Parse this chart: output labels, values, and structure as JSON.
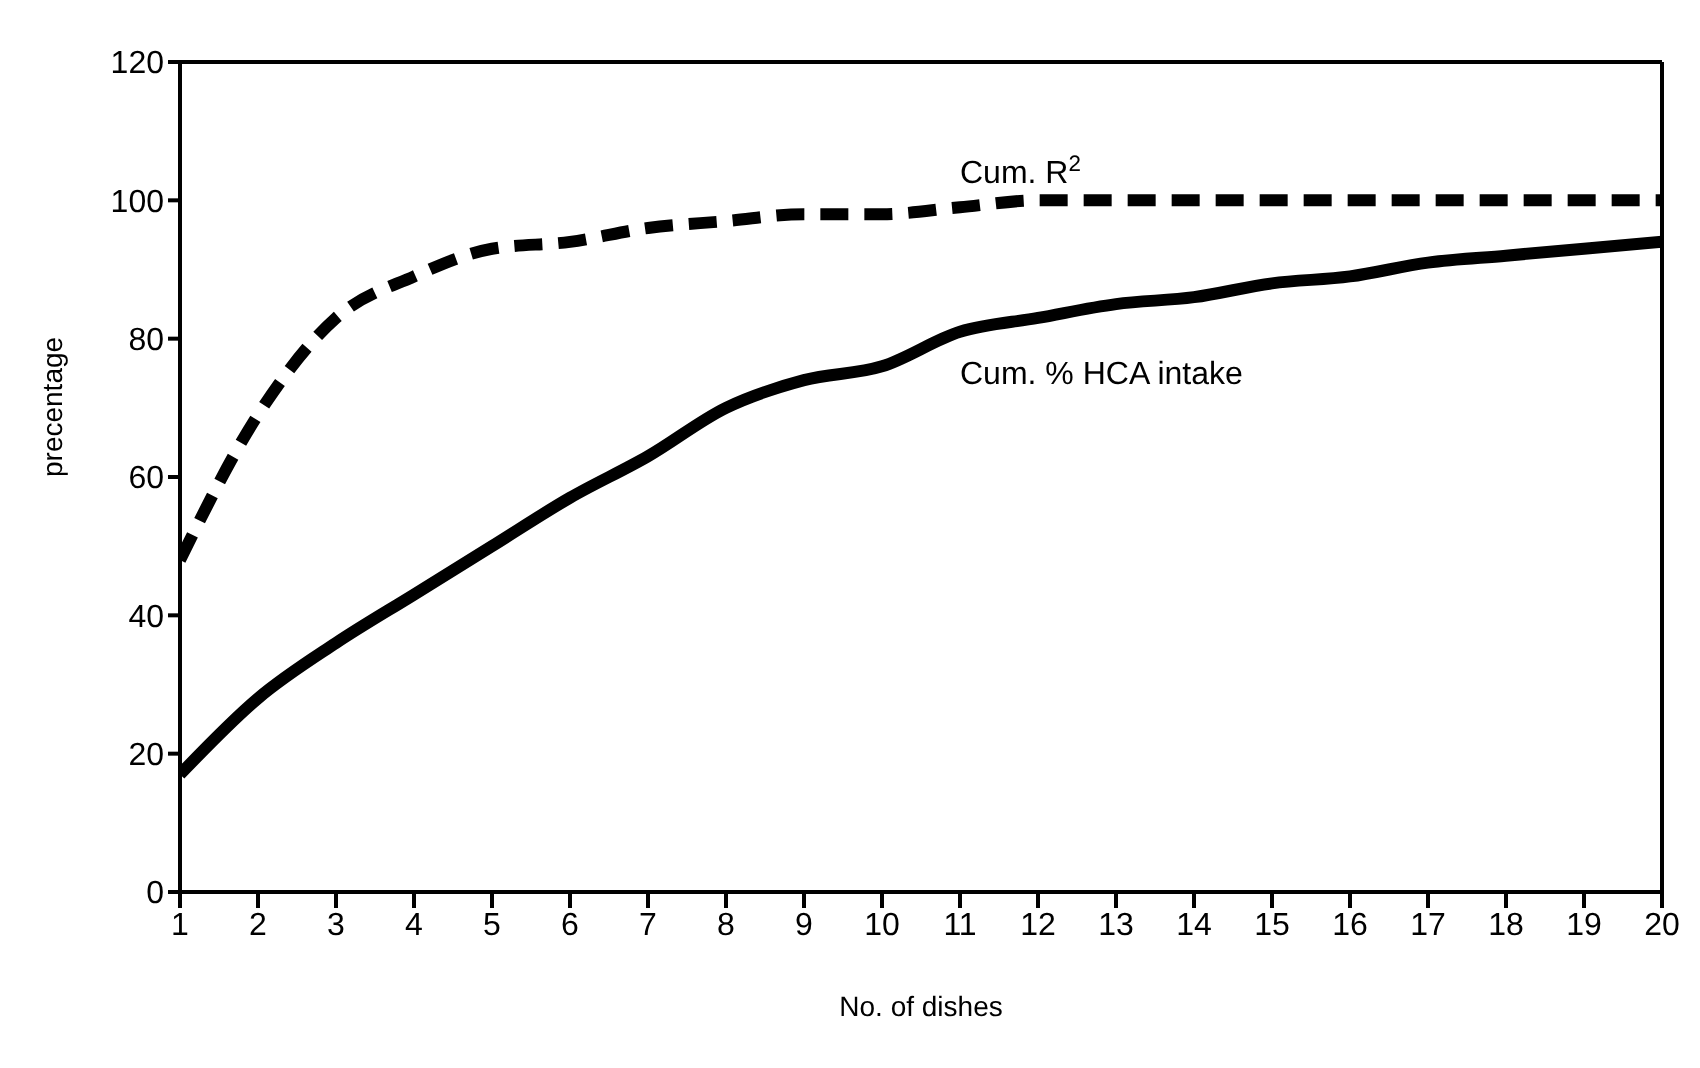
{
  "chart_data": {
    "type": "line",
    "xlabel": "No. of dishes",
    "ylabel": "precentage",
    "x": [
      1,
      2,
      3,
      4,
      5,
      6,
      7,
      8,
      9,
      10,
      11,
      12,
      13,
      14,
      15,
      16,
      17,
      18,
      19,
      20
    ],
    "series": [
      {
        "name": "Cum. R$^{2}$",
        "color": "#000000",
        "line_style": "dashed",
        "values": [
          48,
          69,
          83,
          89,
          93,
          94,
          96,
          97,
          98,
          98,
          99,
          100,
          100,
          100,
          100,
          100,
          100,
          100,
          100,
          100
        ]
      },
      {
        "name": "Cum. % HCA intake",
        "color": "#000000",
        "line_style": "solid",
        "values": [
          17,
          28,
          36,
          43,
          50,
          57,
          63,
          70,
          74,
          76,
          81,
          83,
          85,
          86,
          88,
          89,
          91,
          92,
          93,
          94
        ]
      }
    ],
    "xlim": [
      1,
      20
    ],
    "xticks": [
      1,
      2,
      3,
      4,
      5,
      6,
      7,
      8,
      9,
      10,
      11,
      12,
      13,
      14,
      15,
      16,
      17,
      18,
      19,
      20
    ],
    "ylim": [
      0,
      120
    ],
    "yticks": [
      0,
      20,
      40,
      60,
      80,
      100,
      120
    ],
    "marker": "none"
  }
}
